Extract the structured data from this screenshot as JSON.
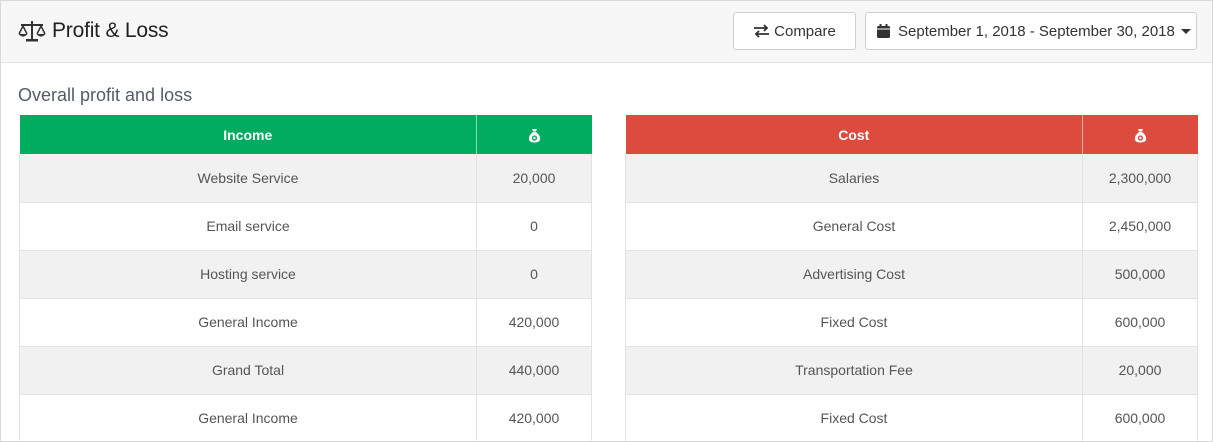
{
  "header": {
    "title": "Profit & Loss",
    "compare_label": "Compare",
    "date_range": "September 1, 2018 - September 30, 2018"
  },
  "section": {
    "title": "Overall profit and loss"
  },
  "income": {
    "header_label": "Income",
    "amount_icon": "money-bag-icon",
    "color": "#00ac5f",
    "rows": [
      {
        "label": "Website Service",
        "value": "20,000"
      },
      {
        "label": "Email service",
        "value": "0"
      },
      {
        "label": "Hosting service",
        "value": "0"
      },
      {
        "label": "General Income",
        "value": "420,000"
      },
      {
        "label": "Grand Total",
        "value": "440,000"
      },
      {
        "label": "General Income",
        "value": "420,000"
      }
    ]
  },
  "cost": {
    "header_label": "Cost",
    "amount_icon": "money-bag-icon",
    "color": "#dd4b3f",
    "rows": [
      {
        "label": "Salaries",
        "value": "2,300,000"
      },
      {
        "label": "General Cost",
        "value": "2,450,000"
      },
      {
        "label": "Advertising Cost",
        "value": "500,000"
      },
      {
        "label": "Fixed Cost",
        "value": "600,000"
      },
      {
        "label": "Transportation Fee",
        "value": "20,000"
      },
      {
        "label": "Fixed Cost",
        "value": "600,000"
      }
    ]
  }
}
